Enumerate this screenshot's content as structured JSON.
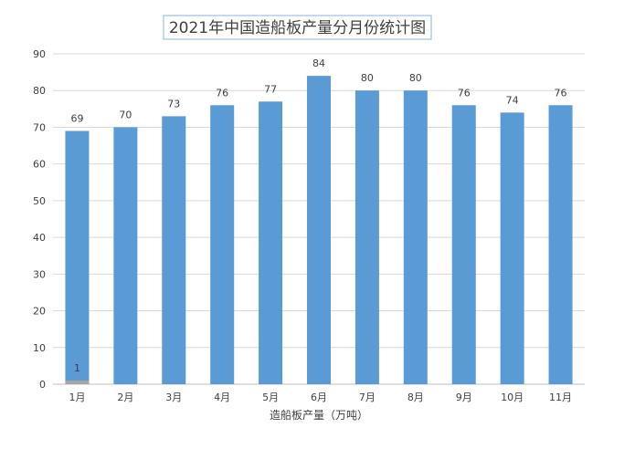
{
  "chart_data": {
    "type": "bar",
    "title": "2021年中国造船板产量分月份统计图",
    "xlabel": "造船板产量（万吨）",
    "ylabel": "",
    "categories": [
      "1月",
      "2月",
      "3月",
      "4月",
      "5月",
      "6月",
      "7月",
      "8月",
      "9月",
      "10月",
      "11月"
    ],
    "series": [
      {
        "values": [
          69,
          70,
          73,
          76,
          77,
          84,
          80,
          80,
          76,
          74,
          76
        ],
        "color": "#5b9bd5"
      },
      {
        "values": [
          1,
          null,
          null,
          null,
          null,
          null,
          null,
          null,
          null,
          null,
          null
        ],
        "color": "#a5a5a5"
      }
    ],
    "ylim": [
      0,
      90
    ],
    "yticks": [
      0,
      10,
      20,
      30,
      40,
      50,
      60,
      70,
      80,
      90
    ],
    "grid": true,
    "data_labels": true,
    "title_border_color": "#8ab4d8"
  }
}
